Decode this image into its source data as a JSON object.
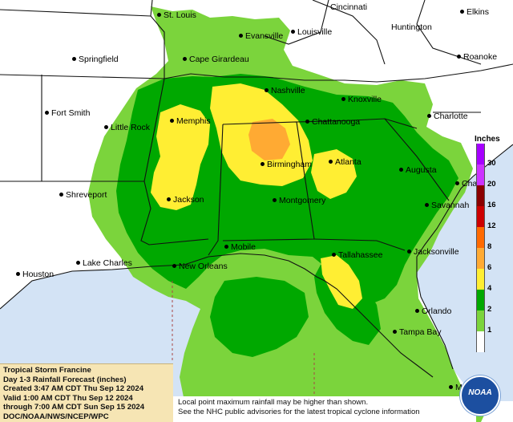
{
  "legend": {
    "title": "Inches",
    "items": [
      {
        "label": "30",
        "color": "#a600ff"
      },
      {
        "label": "20",
        "color": "#cc33ff"
      },
      {
        "label": "16",
        "color": "#8b0000"
      },
      {
        "label": "12",
        "color": "#cc0000"
      },
      {
        "label": "8",
        "color": "#ff6a00"
      },
      {
        "label": "6",
        "color": "#ffaa33"
      },
      {
        "label": "4",
        "color": "#ffee33"
      },
      {
        "label": "2",
        "color": "#00a800"
      },
      {
        "label": "1",
        "color": "#7bd43c"
      },
      {
        "label": "",
        "color": "#ffffff"
      }
    ]
  },
  "cities": [
    {
      "id": "st-louis",
      "name": "St. Louis"
    },
    {
      "id": "cincinnati",
      "name": "Cincinnati"
    },
    {
      "id": "elkins",
      "name": "Elkins"
    },
    {
      "id": "evansville",
      "name": "Evansville"
    },
    {
      "id": "louisville",
      "name": "Louisville"
    },
    {
      "id": "huntington",
      "name": "Huntington"
    },
    {
      "id": "springfield",
      "name": "Springfield"
    },
    {
      "id": "cape-girardeau",
      "name": "Cape Girardeau"
    },
    {
      "id": "roanoke",
      "name": "Roanoke"
    },
    {
      "id": "nashville",
      "name": "Nashville"
    },
    {
      "id": "knoxville",
      "name": "Knoxville"
    },
    {
      "id": "fort-smith",
      "name": "Fort Smith"
    },
    {
      "id": "charlotte",
      "name": "Charlotte"
    },
    {
      "id": "memphis",
      "name": "Memphis"
    },
    {
      "id": "little-rock",
      "name": "Little Rock"
    },
    {
      "id": "chattanooga",
      "name": "Chattanooga"
    },
    {
      "id": "birmingham",
      "name": "Birmingham"
    },
    {
      "id": "atlanta",
      "name": "Atlanta"
    },
    {
      "id": "augusta",
      "name": "Augusta"
    },
    {
      "id": "shreveport",
      "name": "Shreveport"
    },
    {
      "id": "jackson",
      "name": "Jackson"
    },
    {
      "id": "montgomery",
      "name": "Montgomery"
    },
    {
      "id": "cha",
      "name": "Cha"
    },
    {
      "id": "savannah",
      "name": "Savannah"
    },
    {
      "id": "mobile",
      "name": "Mobile"
    },
    {
      "id": "tallahassee",
      "name": "Tallahassee"
    },
    {
      "id": "jacksonville",
      "name": "Jacksonville"
    },
    {
      "id": "lake-charles",
      "name": "Lake Charles"
    },
    {
      "id": "new-orleans",
      "name": "New Orleans"
    },
    {
      "id": "houston",
      "name": "Houston"
    },
    {
      "id": "orlando",
      "name": "Orlando"
    },
    {
      "id": "tampa-bay",
      "name": "Tampa Bay"
    },
    {
      "id": "mi",
      "name": "Mi"
    }
  ],
  "info": {
    "line1": "Tropical Storm Francine",
    "line2": "Day 1-3 Rainfall Forecast (inches)",
    "line3": "Created 3:47 AM CDT Thu Sep 12 2024",
    "line4": "Valid 1:00 AM CDT Thu Sep 12 2024",
    "line5": "through 7:00 AM CDT Sun Sep 15 2024",
    "line6": "DOC/NOAA/NWS/NCEP/WPC"
  },
  "note": {
    "line1": "Local point maximum rainfall may be higher than shown.",
    "line2": "See the NHC public advisories for the latest tropical cyclone information"
  },
  "logo": {
    "text": "NOAA"
  },
  "colors": {
    "land": "#ffffff",
    "water": "#d3e3f5",
    "light_green": "#7bd43c",
    "dark_green": "#00a800",
    "yellow": "#ffee33",
    "orange": "#ffaa33",
    "info_bg": "#f6e5b4"
  }
}
